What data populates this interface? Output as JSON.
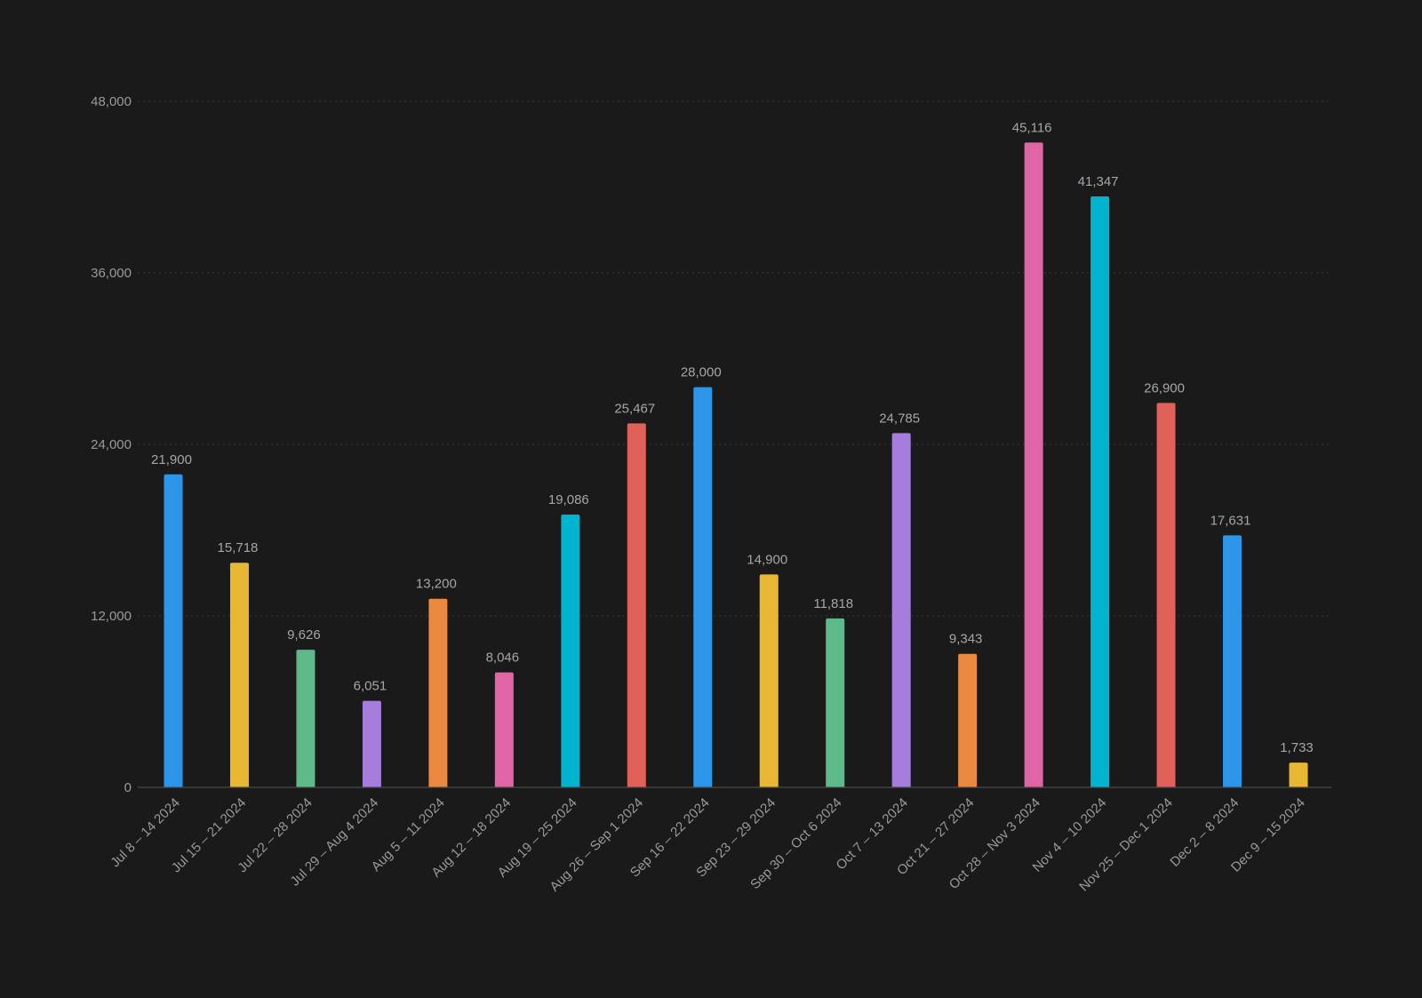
{
  "chart_data": {
    "type": "bar",
    "title": "",
    "xlabel": "",
    "ylabel": "",
    "ylim": [
      0,
      48000
    ],
    "yticks": [
      0,
      12000,
      24000,
      36000,
      48000
    ],
    "ytick_labels": [
      "0",
      "12,000",
      "24,000",
      "36,000",
      "48,000"
    ],
    "grid": true,
    "legend": false,
    "categories": [
      "Jul 8 – 14 2024",
      "Jul 15 – 21 2024",
      "Jul 22 – 28 2024",
      "Jul 29 – Aug 4 2024",
      "Aug 5 – 11 2024",
      "Aug 12 – 18 2024",
      "Aug 19 – 25 2024",
      "Aug 26 – Sep 1 2024",
      "Sep 16 – 22 2024",
      "Sep 23 – 29 2024",
      "Sep 30 – Oct 6 2024",
      "Oct 7 – 13 2024",
      "Oct 21 – 27 2024",
      "Oct 28 – Nov 3 2024",
      "Nov 4 – 10 2024",
      "Nov 25 – Dec 1 2024",
      "Dec 2 – 8 2024",
      "Dec 9 – 15 2024"
    ],
    "values": [
      21900,
      15718,
      9626,
      6051,
      13200,
      8046,
      19086,
      25467,
      28000,
      14900,
      11818,
      24785,
      9343,
      45116,
      41347,
      26900,
      17631,
      1733
    ],
    "value_labels": [
      "21,900",
      "15,718",
      "9,626",
      "6,051",
      "13,200",
      "8,046",
      "19,086",
      "25,467",
      "28,000",
      "14,900",
      "11,818",
      "24,785",
      "9,343",
      "45,116",
      "41,347",
      "26,900",
      "17,631",
      "1,733"
    ],
    "colors": [
      "#2d96e8",
      "#e8b834",
      "#5dbb8a",
      "#a67ddc",
      "#ea8a40",
      "#df65a6",
      "#00b4cf",
      "#e0605a",
      "#2d96e8",
      "#e8b834",
      "#5dbb8a",
      "#a67ddc",
      "#ea8a40",
      "#df65a6",
      "#00b4cf",
      "#e0605a",
      "#2d96e8",
      "#e8b834"
    ]
  }
}
